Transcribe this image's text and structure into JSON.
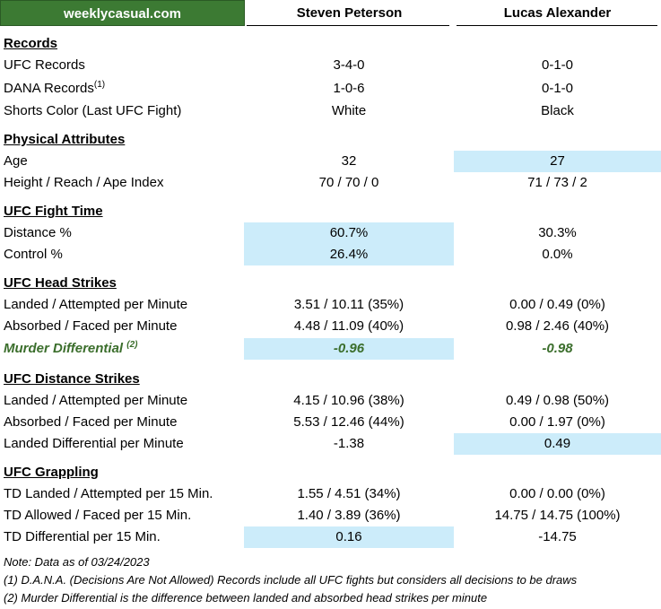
{
  "header": {
    "brand": "weeklycasual.com",
    "fighter_a": "Steven Peterson",
    "fighter_b": "Lucas Alexander"
  },
  "sections": {
    "records": {
      "title": "Records",
      "ufc_records": {
        "label": "UFC Records",
        "a": "3-4-0",
        "b": "0-1-0"
      },
      "dana_records": {
        "label": "DANA Records",
        "sup": "(1)",
        "a": "1-0-6",
        "b": "0-1-0"
      },
      "shorts_color": {
        "label": "Shorts Color (Last UFC Fight)",
        "a": "White",
        "b": "Black"
      }
    },
    "physical": {
      "title": "Physical Attributes",
      "age": {
        "label": "Age",
        "a": "32",
        "b": "27"
      },
      "height_reach": {
        "label": "Height / Reach / Ape Index",
        "a": "70 / 70 / 0",
        "b": "71 / 73 / 2"
      }
    },
    "fight_time": {
      "title": "UFC Fight Time",
      "distance": {
        "label": "Distance %",
        "a": "60.7%",
        "b": "30.3%"
      },
      "control": {
        "label": "Control %",
        "a": "26.4%",
        "b": "0.0%"
      }
    },
    "head_strikes": {
      "title": "UFC Head Strikes",
      "landed": {
        "label": "Landed / Attempted per Minute",
        "a": "3.51 / 10.11 (35%)",
        "b": "0.00 / 0.49 (0%)"
      },
      "absorbed": {
        "label": "Absorbed / Faced per Minute",
        "a": "4.48 / 11.09 (40%)",
        "b": "0.98 / 2.46 (40%)"
      },
      "murder": {
        "label": "Murder Differential",
        "sup": "(2)",
        "a": "-0.96",
        "b": "-0.98"
      }
    },
    "distance_strikes": {
      "title": "UFC Distance Strikes",
      "landed": {
        "label": "Landed / Attempted per Minute",
        "a": "4.15 / 10.96 (38%)",
        "b": "0.49 / 0.98 (50%)"
      },
      "absorbed": {
        "label": "Absorbed / Faced per Minute",
        "a": "5.53 / 12.46 (44%)",
        "b": "0.00 / 1.97 (0%)"
      },
      "differential": {
        "label": "Landed Differential per Minute",
        "a": "-1.38",
        "b": "0.49"
      }
    },
    "grappling": {
      "title": "UFC Grappling",
      "td_landed": {
        "label": "TD Landed / Attempted per 15 Min.",
        "a": "1.55 / 4.51 (34%)",
        "b": "0.00 / 0.00 (0%)"
      },
      "td_allowed": {
        "label": "TD Allowed / Faced per 15 Min.",
        "a": "1.40 / 3.89 (36%)",
        "b": "14.75 / 14.75 (100%)"
      },
      "td_diff": {
        "label": "TD Differential per 15 Min.",
        "a": "0.16",
        "b": "-14.75"
      }
    }
  },
  "notes": {
    "date": "Note: Data as of 03/24/2023",
    "note1": "(1) D.A.N.A. (Decisions Are Not Allowed) Records include all UFC fights but considers all decisions to be draws",
    "note2": "(2) Murder Differential is the difference between landed and absorbed head strikes per minute"
  },
  "colors": {
    "brand_bg": "#3c7a33",
    "highlight": "#ccecfa",
    "murder_text": "#3b6e2c"
  }
}
